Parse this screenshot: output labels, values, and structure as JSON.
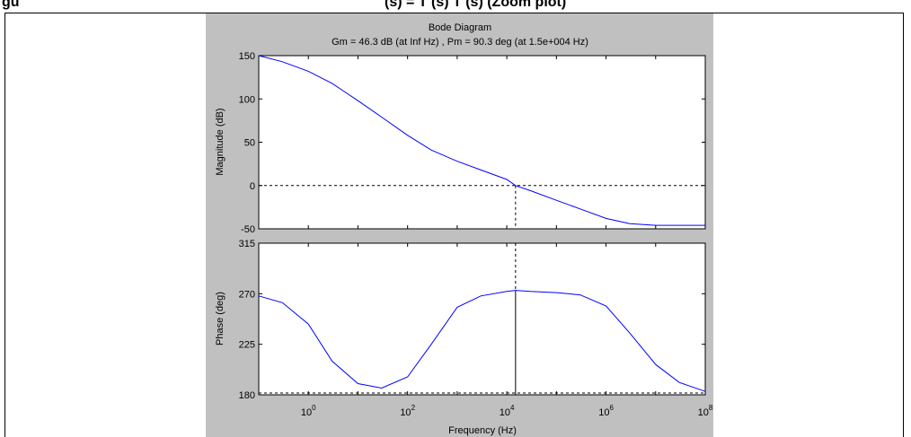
{
  "caption": {
    "text_left": "gu",
    "text_right": "(s) = T (s) T (s) (Zoom plot)"
  },
  "chart_data": {
    "type": "line",
    "title": "Bode Diagram",
    "subtitle": "Gm = 46.3 dB (at Inf Hz) ,  Pm = 90.3 deg (at 1.5e+004 Hz)",
    "xlabel": "Frequency  (Hz)",
    "xscale": "log",
    "xlim": [
      0.1,
      100000000
    ],
    "x_tick_labels": [
      {
        "base": "10",
        "exp": "0",
        "value": 1
      },
      {
        "base": "10",
        "exp": "2",
        "value": 100
      },
      {
        "base": "10",
        "exp": "4",
        "value": 10000
      },
      {
        "base": "10",
        "exp": "6",
        "value": 1000000
      },
      {
        "base": "10",
        "exp": "8",
        "value": 100000000
      }
    ],
    "crossover_frequency": 15000,
    "magnitude": {
      "ylabel": "Magnitude (dB)",
      "ylim": [
        -50,
        150
      ],
      "yticks": [
        -50,
        0,
        50,
        100,
        150
      ],
      "reference_y": 0,
      "series": [
        {
          "x": [
            0.1,
            0.3,
            1,
            3,
            10,
            30,
            100,
            300,
            1000,
            3000,
            10000,
            15000,
            30000,
            100000,
            300000,
            1000000,
            3000000,
            10000000,
            30000000,
            100000000
          ],
          "y": [
            150,
            143,
            132,
            118,
            98,
            79,
            58,
            41,
            28,
            18,
            7,
            0,
            -6,
            -17,
            -27,
            -38,
            -44,
            -46,
            -46,
            -46
          ]
        }
      ]
    },
    "phase": {
      "ylabel": "Phase (deg)",
      "ylim": [
        180,
        315
      ],
      "yticks": [
        180,
        225,
        270,
        315
      ],
      "reference_y": 180,
      "series": [
        {
          "x": [
            0.1,
            0.3,
            1,
            3,
            10,
            30,
            100,
            300,
            1000,
            3000,
            10000,
            15000,
            30000,
            100000,
            300000,
            1000000,
            3000000,
            10000000,
            30000000,
            100000000
          ],
          "y": [
            268,
            262,
            243,
            210,
            190,
            186,
            196,
            225,
            258,
            268,
            272,
            273,
            272,
            271,
            269,
            259,
            235,
            207,
            191,
            183
          ]
        }
      ]
    }
  }
}
